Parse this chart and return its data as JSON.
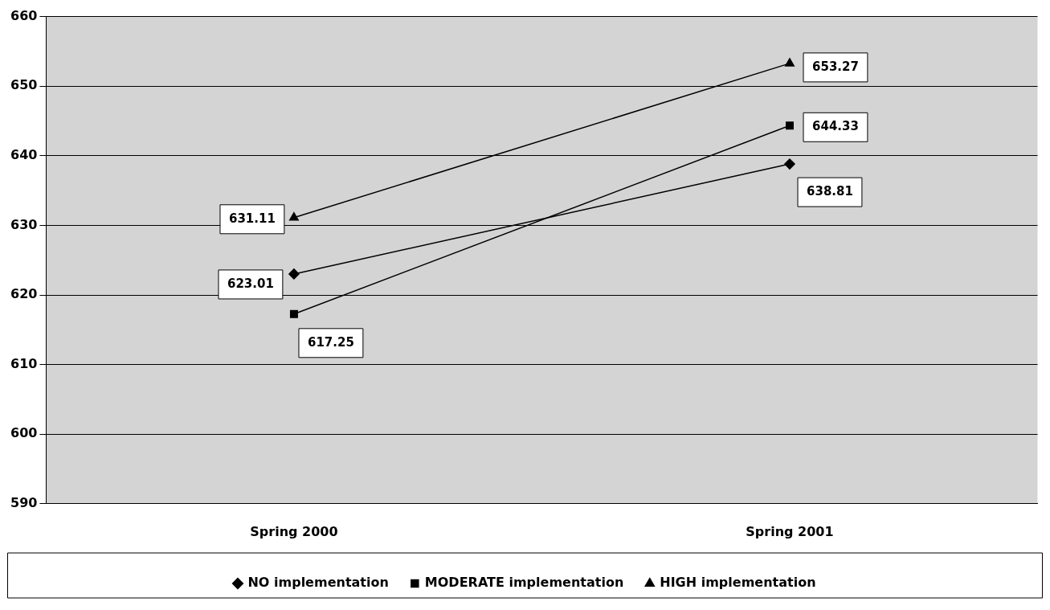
{
  "chart_data": {
    "type": "line",
    "categories": [
      "Spring 2000",
      "Spring 2001"
    ],
    "series": [
      {
        "name": "NO implementation",
        "color": "#000000",
        "marker": "diamond",
        "values": [
          623.01,
          638.81
        ]
      },
      {
        "name": "MODERATE implementation",
        "color": "#000000",
        "marker": "square",
        "values": [
          617.25,
          644.33
        ]
      },
      {
        "name": "HIGH implementation",
        "color": "#000000",
        "marker": "triangle",
        "values": [
          631.11,
          653.27
        ]
      }
    ],
    "ylim": [
      590,
      660
    ],
    "yticks": [
      590,
      600,
      610,
      620,
      630,
      640,
      650,
      660
    ],
    "grid": "y",
    "legend": "bottom",
    "data_labels": true,
    "line_style": "solid"
  }
}
